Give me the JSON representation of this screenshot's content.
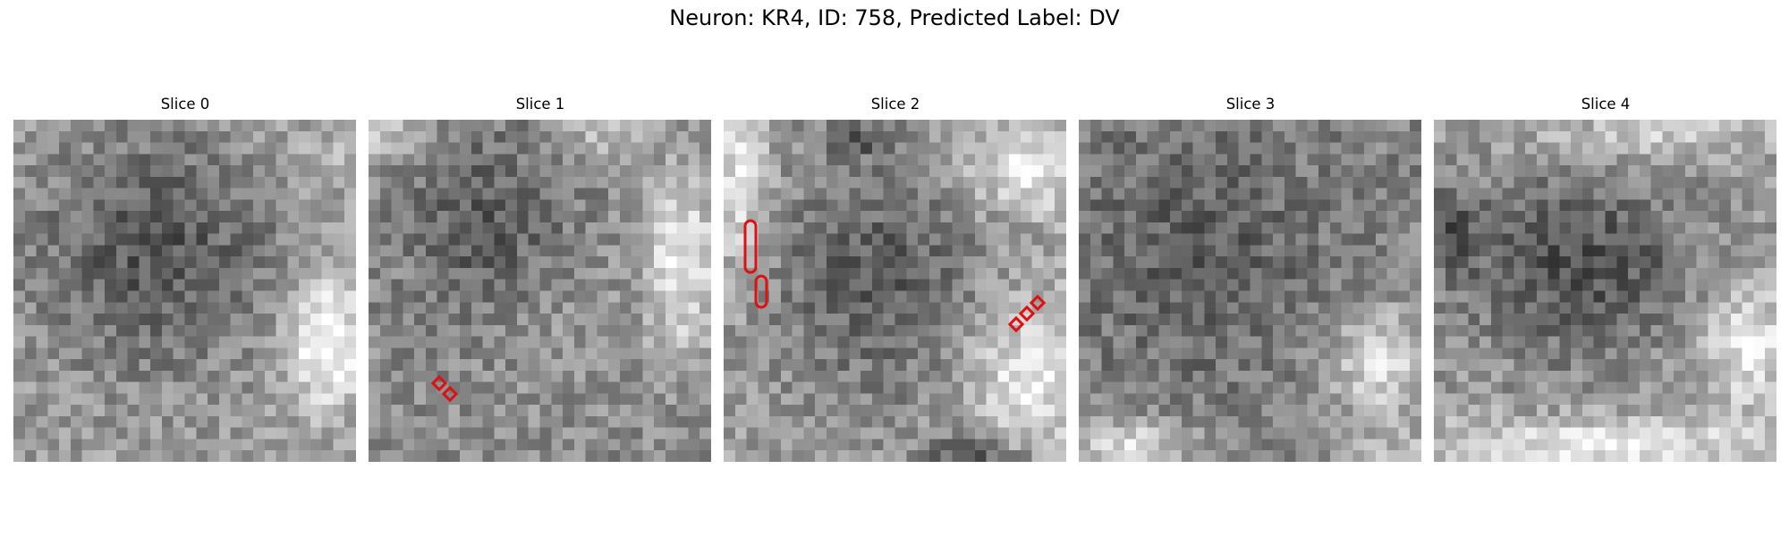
{
  "figure": {
    "title": "Neuron: KR4, ID: 758, Predicted Label: DV",
    "marker_color": "#dd1111",
    "colormap": "gray"
  },
  "panels": [
    {
      "title": "Slice 0",
      "pattern": "slice0"
    },
    {
      "title": "Slice 1",
      "pattern": "slice1"
    },
    {
      "title": "Slice 2",
      "pattern": "slice2"
    },
    {
      "title": "Slice 3",
      "pattern": "slice3"
    },
    {
      "title": "Slice 4",
      "pattern": "slice4"
    }
  ]
}
